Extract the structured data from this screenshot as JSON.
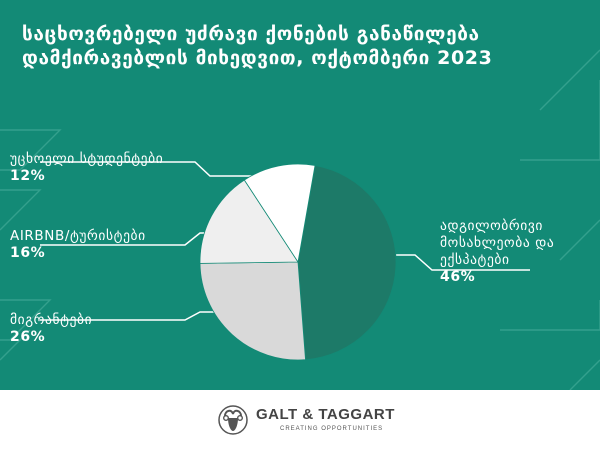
{
  "title": {
    "line1": "საცხოვრებელი უძრავი ქონების განაწილება",
    "line2": "დამქირავებლის მიხედვით, ოქტომბერი 2023"
  },
  "colors": {
    "background": "#138a76",
    "local": "#1d7a68",
    "migrants": "#d9d9d9",
    "airbnb": "#efefef",
    "students": "#ffffff"
  },
  "chart_data": {
    "type": "pie",
    "title": "საცხოვრებელი უძრავი ქონების განაწილება დამქირავებლის მიხედვით, ოქტომბერი 2023",
    "slices": [
      {
        "label_lines": [
          "ადგილობრივი",
          "მოსახლეობა და",
          "ექსპატები"
        ],
        "value": 46,
        "value_label": "46%",
        "color": "#1d7a68"
      },
      {
        "label_lines": [
          "მიგრანტები"
        ],
        "value": 26,
        "value_label": "26%",
        "color": "#d9d9d9"
      },
      {
        "label_lines": [
          "AIRBNB/ტურისტები"
        ],
        "value": 16,
        "value_label": "16%",
        "color": "#efefef"
      },
      {
        "label_lines": [
          "უცხოელი სტუდენტები"
        ],
        "value": 12,
        "value_label": "12%",
        "color": "#ffffff"
      }
    ]
  },
  "footer": {
    "brand": "GALT & TAGGART",
    "tagline": "CREATING OPPORTUNITIES",
    "logo_icon": "ram-head-icon"
  }
}
